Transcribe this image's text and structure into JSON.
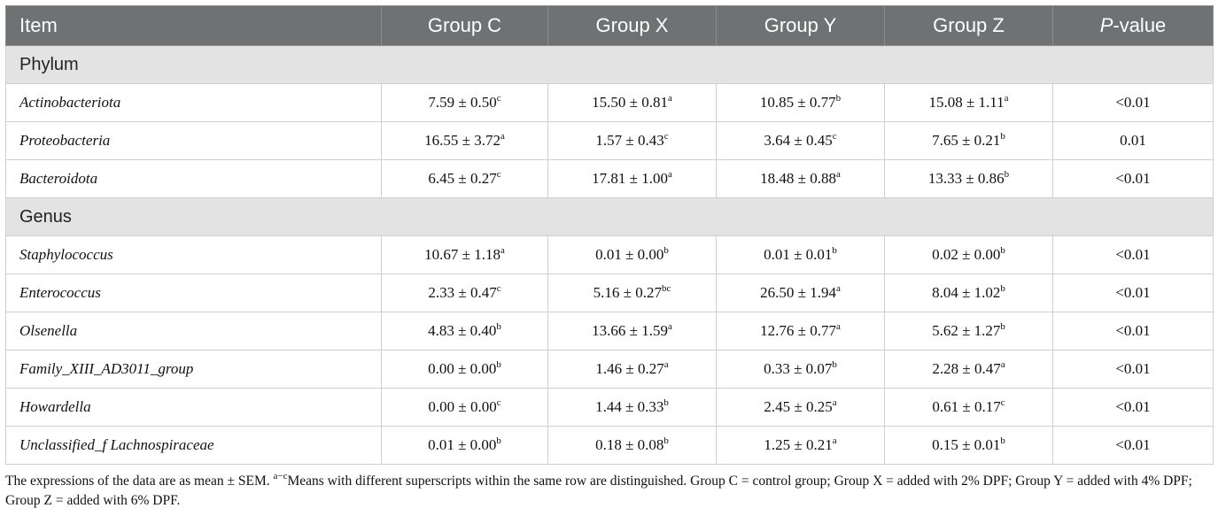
{
  "table": {
    "headers": {
      "item": "Item",
      "group_c": "Group C",
      "group_x": "Group X",
      "group_y": "Group Y",
      "group_z": "Group Z",
      "p_italic": "P",
      "p_rest": "-value"
    },
    "sections": [
      {
        "title": "Phylum",
        "rows": [
          {
            "item": "Actinobacteriota",
            "c": "7.59 ± 0.50",
            "c_sup": "c",
            "x": "15.50 ± 0.81",
            "x_sup": "a",
            "y": "10.85 ± 0.77",
            "y_sup": "b",
            "z": "15.08 ± 1.11",
            "z_sup": "a",
            "p": "<0.01"
          },
          {
            "item": "Proteobacteria",
            "c": "16.55 ± 3.72",
            "c_sup": "a",
            "x": "1.57 ± 0.43",
            "x_sup": "c",
            "y": "3.64 ± 0.45",
            "y_sup": "c",
            "z": "7.65 ± 0.21",
            "z_sup": "b",
            "p": "0.01"
          },
          {
            "item": "Bacteroidota",
            "c": "6.45 ± 0.27",
            "c_sup": "c",
            "x": "17.81 ± 1.00",
            "x_sup": "a",
            "y": "18.48 ± 0.88",
            "y_sup": "a",
            "z": "13.33 ± 0.86",
            "z_sup": "b",
            "p": "<0.01"
          }
        ]
      },
      {
        "title": "Genus",
        "rows": [
          {
            "item": "Staphylococcus",
            "c": "10.67 ± 1.18",
            "c_sup": "a",
            "x": "0.01 ± 0.00",
            "x_sup": "b",
            "y": "0.01 ± 0.01",
            "y_sup": "b",
            "z": "0.02 ± 0.00",
            "z_sup": "b",
            "p": "<0.01"
          },
          {
            "item": "Enterococcus",
            "c": "2.33 ± 0.47",
            "c_sup": "c",
            "x": "5.16 ± 0.27",
            "x_sup": "bc",
            "y": "26.50 ± 1.94",
            "y_sup": "a",
            "z": "8.04 ± 1.02",
            "z_sup": "b",
            "p": "<0.01"
          },
          {
            "item": "Olsenella",
            "c": "4.83 ± 0.40",
            "c_sup": "b",
            "x": "13.66 ± 1.59",
            "x_sup": "a",
            "y": "12.76 ± 0.77",
            "y_sup": "a",
            "z": "5.62 ± 1.27",
            "z_sup": "b",
            "p": "<0.01"
          },
          {
            "item": "Family_XIII_AD3011_group",
            "c": "0.00 ± 0.00",
            "c_sup": "b",
            "x": "1.46 ± 0.27",
            "x_sup": "a",
            "y": "0.33 ± 0.07",
            "y_sup": "b",
            "z": "2.28 ± 0.47",
            "z_sup": "a",
            "p": "<0.01"
          },
          {
            "item": "Howardella",
            "c": "0.00 ± 0.00",
            "c_sup": "c",
            "x": "1.44 ± 0.33",
            "x_sup": "b",
            "y": "2.45 ± 0.25",
            "y_sup": "a",
            "z": "0.61 ± 0.17",
            "z_sup": "c",
            "p": "<0.01"
          },
          {
            "item": "Unclassified_f Lachnospiraceae",
            "c": "0.01 ± 0.00",
            "c_sup": "b",
            "x": "0.18 ± 0.08",
            "x_sup": "b",
            "y": "1.25 ± 0.21",
            "y_sup": "a",
            "z": "0.15 ± 0.01",
            "z_sup": "b",
            "p": "<0.01"
          }
        ]
      }
    ]
  },
  "footnote": {
    "part1": "The expressions of the data are as mean ± SEM. ",
    "sup": "a−c",
    "part2": "Means with different superscripts within the same row are distinguished. Group C = control group; Group X = added with 2% DPF; Group Y = added with 4% DPF; Group Z = added with 6% DPF."
  },
  "colors": {
    "header_bg": "#6f7173",
    "section_bg": "#e3e3e3",
    "border": "#cfcfcf"
  }
}
